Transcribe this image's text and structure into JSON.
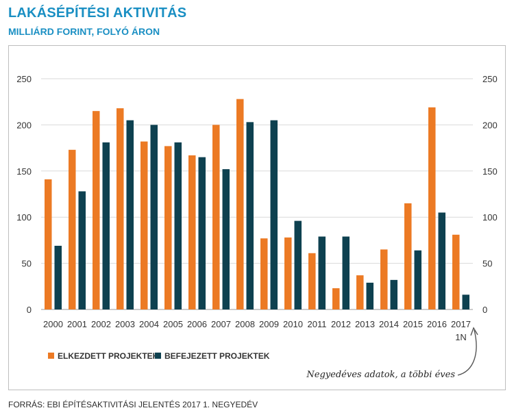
{
  "header": {
    "title": "LAKÁSÉPÍTÉSI AKTIVITÁS",
    "subtitle": "MILLIÁRD FORINT, FOLYÓ ÁRON"
  },
  "footer": {
    "source": "FORRÁS: EBI ÉPÍTÉSAKTIVITÁSI JELENTÉS 2017 1. NEGYEDÉV"
  },
  "annotation": {
    "text": "Negyedéves adatok, a többi éves"
  },
  "colors": {
    "started": "#ec7a24",
    "completed": "#0e4150",
    "accent": "#1a8fc3",
    "grid": "#d9d9d9"
  },
  "chart_data": {
    "type": "bar",
    "categories": [
      "2000",
      "2001",
      "2002",
      "2003",
      "2004",
      "2005",
      "2006",
      "2007",
      "2008",
      "2009",
      "2010",
      "2011",
      "2012",
      "2013",
      "2014",
      "2015",
      "2016",
      "2017\n1N"
    ],
    "series": [
      {
        "name": "ELKEZDETT PROJEKTEK",
        "values": [
          141,
          173,
          215,
          218,
          182,
          177,
          167,
          200,
          228,
          77,
          78,
          61,
          23,
          37,
          65,
          115,
          219,
          81
        ]
      },
      {
        "name": "BEFEJEZETT PROJEKTEK",
        "values": [
          69,
          128,
          181,
          205,
          200,
          181,
          165,
          152,
          203,
          205,
          96,
          79,
          79,
          29,
          32,
          64,
          105,
          16
        ]
      }
    ],
    "yticks": [
      0,
      50,
      100,
      150,
      200,
      250
    ],
    "ylim": [
      0,
      250
    ],
    "grid": true,
    "legend_position": "bottom-left",
    "secondary_axis": true
  }
}
